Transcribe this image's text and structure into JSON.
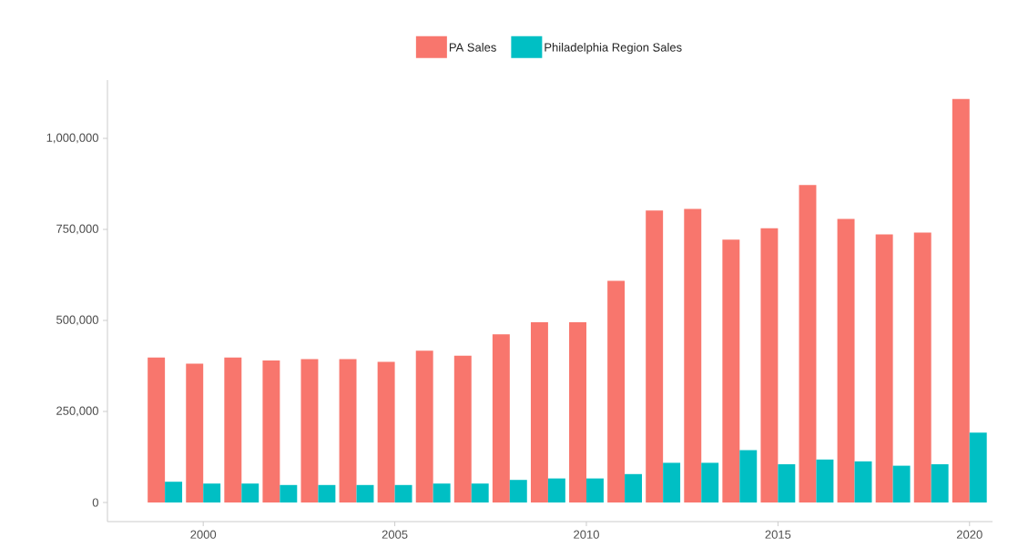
{
  "chart_data": {
    "type": "bar",
    "x": [
      1999,
      2000,
      2001,
      2002,
      2003,
      2004,
      2005,
      2006,
      2007,
      2008,
      2009,
      2010,
      2011,
      2012,
      2013,
      2014,
      2015,
      2016,
      2017,
      2018,
      2019,
      2020
    ],
    "series": [
      {
        "name": "PA Sales",
        "color": "#f8766d",
        "values": [
          398000,
          381000,
          398000,
          390000,
          394000,
          394000,
          386000,
          417000,
          403000,
          462000,
          495000,
          495000,
          609000,
          802000,
          806000,
          722000,
          753000,
          872000,
          779000,
          736000,
          741000,
          1108000
        ]
      },
      {
        "name": "Philadelphia Region Sales",
        "color": "#00bfc4",
        "values": [
          57000,
          52000,
          52000,
          48000,
          48000,
          48000,
          48000,
          52000,
          52000,
          62000,
          66000,
          66000,
          78000,
          109000,
          109000,
          144000,
          105000,
          118000,
          113000,
          101000,
          105000,
          192000
        ]
      }
    ],
    "xlim": [
      1997.5,
      2020.6
    ],
    "ylim": [
      -52500,
      1160000
    ],
    "xticks": [
      2000,
      2005,
      2010,
      2015,
      2020
    ],
    "yticks": [
      0,
      {
        "value": 250000,
        "label": "250,000"
      },
      {
        "value": 500000,
        "label": "500,000"
      },
      {
        "value": 750000,
        "label": "750,000"
      },
      {
        "value": 1000000,
        "label": "1,000,000"
      }
    ],
    "legend": "top",
    "grid": false
  }
}
